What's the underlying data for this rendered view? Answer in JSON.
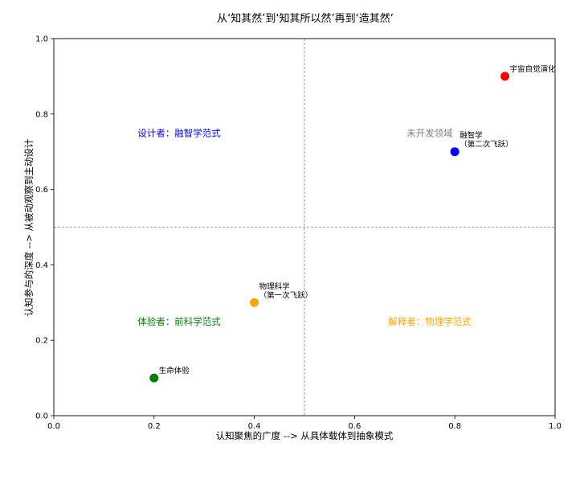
{
  "chart_data": {
    "type": "scatter",
    "title": "从‘知其然’到‘知其所以然’再到‘造其然’",
    "xlabel": "认知聚焦的广度 --> 从具体载体到抽象模式",
    "ylabel": "认知参与的深度 --> 从被动观察到主动设计",
    "xlim": [
      0,
      1
    ],
    "ylim": [
      0,
      1
    ],
    "xticks": [
      "0.0",
      "0.2",
      "0.4",
      "0.6",
      "0.8",
      "1.0"
    ],
    "yticks": [
      "0.0",
      "0.2",
      "0.4",
      "0.6",
      "0.8",
      "1.0"
    ],
    "grid": false,
    "reference_lines": {
      "x": 0.5,
      "y": 0.5,
      "style": "dashed",
      "color": "#808080"
    },
    "points": [
      {
        "x": 0.2,
        "y": 0.1,
        "color": "#008000",
        "label": [
          "生命体验"
        ]
      },
      {
        "x": 0.4,
        "y": 0.3,
        "color": "#FFA500",
        "label": [
          "物理科学",
          "（第一次飞跃）"
        ]
      },
      {
        "x": 0.8,
        "y": 0.7,
        "color": "#0000FF",
        "label": [
          "融智学",
          "（第二次飞跃）"
        ]
      },
      {
        "x": 0.9,
        "y": 0.9,
        "color": "#FF0000",
        "label": [
          "宇宙自觉演化"
        ]
      }
    ],
    "quadrant_labels": [
      {
        "text": "体验者：前科学范式",
        "x": 0.25,
        "y": 0.25,
        "color": "#008000"
      },
      {
        "text": "解释者：物理学范式",
        "x": 0.75,
        "y": 0.25,
        "color": "#FFA500"
      },
      {
        "text": "设计者：融智学范式",
        "x": 0.25,
        "y": 0.75,
        "color": "#0000FF"
      },
      {
        "text": "未开发领域",
        "x": 0.75,
        "y": 0.75,
        "color": "#808080"
      }
    ]
  }
}
